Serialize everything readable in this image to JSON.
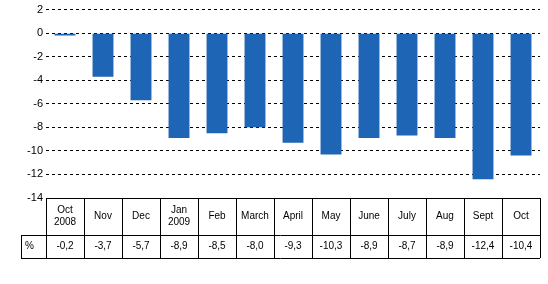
{
  "chart_data": {
    "type": "bar",
    "categories": [
      "Oct 2008",
      "Nov",
      "Dec",
      "Jan 2009",
      "Feb",
      "March",
      "April",
      "May",
      "June",
      "July",
      "Aug",
      "Sept",
      "Oct"
    ],
    "values": [
      -0.2,
      -3.7,
      -5.7,
      -8.9,
      -8.5,
      -8.0,
      -9.3,
      -10.3,
      -8.9,
      -8.7,
      -8.9,
      -12.4,
      -10.4
    ],
    "value_labels": [
      "-0,2",
      "-3,7",
      "-5,7",
      "-8,9",
      "-8,5",
      "-8,0",
      "-9,3",
      "-10,3",
      "-8,9",
      "-8,7",
      "-8,9",
      "-12,4",
      "-10,4"
    ],
    "data_labels": true,
    "ylabel": "%",
    "color": "#1f65b5",
    "ylim": [
      -14,
      2
    ],
    "yticks": [
      -14,
      -12,
      -10,
      -8,
      -6,
      -4,
      -2,
      0,
      2
    ],
    "grid": true
  }
}
